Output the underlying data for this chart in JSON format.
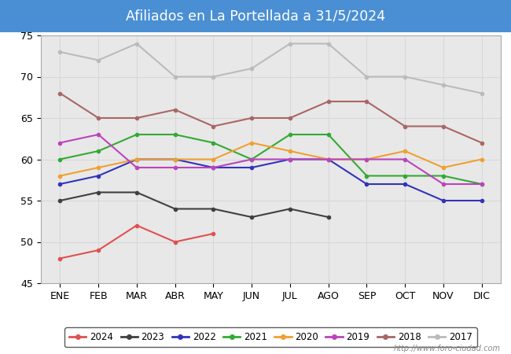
{
  "title": "Afiliados en La Portellada a 31/5/2024",
  "title_bg": "#4a8fd4",
  "months": [
    "ENE",
    "FEB",
    "MAR",
    "ABR",
    "MAY",
    "JUN",
    "JUL",
    "AGO",
    "SEP",
    "OCT",
    "NOV",
    "DIC"
  ],
  "ylim": [
    45,
    75
  ],
  "yticks": [
    45,
    50,
    55,
    60,
    65,
    70,
    75
  ],
  "watermark": "http://www.foro-ciudad.com",
  "grid_color": "#d8d8d8",
  "plot_bg": "#e8e8e8",
  "series": [
    {
      "label": "2024",
      "color": "#e05050",
      "data": [
        48,
        49,
        52,
        50,
        51,
        null,
        null,
        null,
        null,
        null,
        null,
        null
      ]
    },
    {
      "label": "2023",
      "color": "#404040",
      "data": [
        55,
        56,
        56,
        54,
        54,
        53,
        54,
        53,
        null,
        null,
        null,
        null
      ]
    },
    {
      "label": "2022",
      "color": "#3333bb",
      "data": [
        57,
        58,
        60,
        60,
        59,
        59,
        60,
        60,
        57,
        57,
        55,
        55
      ]
    },
    {
      "label": "2021",
      "color": "#33aa33",
      "data": [
        60,
        61,
        63,
        63,
        62,
        60,
        63,
        63,
        58,
        58,
        58,
        57
      ]
    },
    {
      "label": "2020",
      "color": "#f0a030",
      "data": [
        58,
        59,
        60,
        60,
        60,
        62,
        61,
        60,
        60,
        61,
        59,
        60
      ]
    },
    {
      "label": "2019",
      "color": "#bb44bb",
      "data": [
        62,
        63,
        59,
        59,
        59,
        60,
        60,
        60,
        60,
        60,
        57,
        57
      ]
    },
    {
      "label": "2018",
      "color": "#aa6666",
      "data": [
        68,
        65,
        65,
        66,
        64,
        65,
        65,
        67,
        67,
        64,
        64,
        62
      ]
    },
    {
      "label": "2017",
      "color": "#bbbbbb",
      "data": [
        73,
        72,
        74,
        70,
        70,
        71,
        74,
        74,
        70,
        70,
        69,
        68
      ]
    }
  ]
}
